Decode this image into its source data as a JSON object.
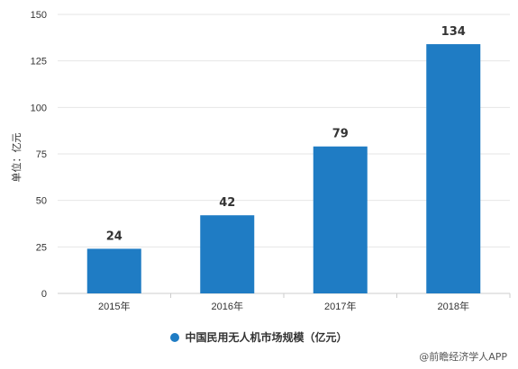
{
  "chart_data": {
    "type": "bar",
    "categories": [
      "2015年",
      "2016年",
      "2017年",
      "2018年"
    ],
    "values": [
      24,
      42,
      79,
      134
    ],
    "data_labels": [
      "24",
      "42",
      "79",
      "134"
    ],
    "ylabel": "单位：亿元",
    "ylim": [
      0,
      150
    ],
    "yticks": [
      0,
      25,
      50,
      75,
      100,
      125,
      150
    ],
    "series": [
      {
        "name": "中国民用无人机市场规模（亿元）",
        "values": [
          24,
          42,
          79,
          134
        ]
      }
    ],
    "legend_position": "bottom",
    "grid": true,
    "bar_color": "#1f7cc4"
  },
  "watermark": "@前瞻经济学人APP"
}
